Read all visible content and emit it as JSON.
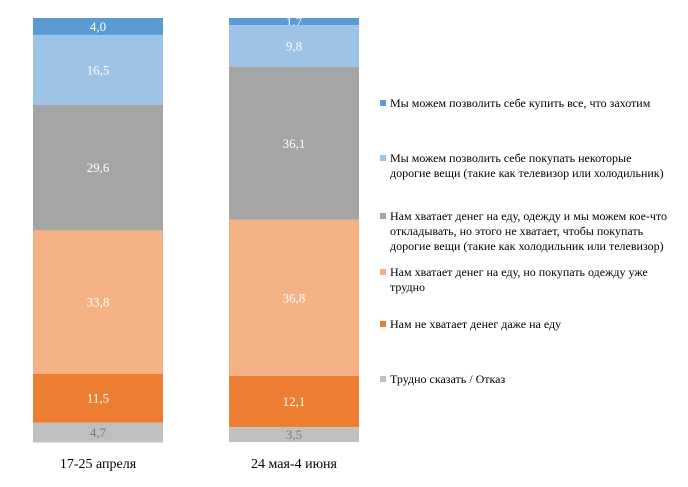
{
  "chart_data": {
    "type": "bar",
    "stacked": true,
    "percent": true,
    "categories": [
      "17-25 апреля",
      "24 мая-4 июня"
    ],
    "series": [
      {
        "name": "Мы можем позволить  себе купить все, что захотим",
        "color": "#5b9bd5",
        "values": [
          4.0,
          1.7
        ],
        "labels": [
          "4,0",
          "1,7"
        ]
      },
      {
        "name": "Мы можем позволить  себе покупать некоторые дорогие вещи (такие как телевизор  или холодильник)",
        "color": "#9dc3e6",
        "values": [
          16.5,
          9.8
        ],
        "labels": [
          "16,5",
          "9,8"
        ]
      },
      {
        "name": "Нам хватает  денег на еду, одежду и мы можем кое-что откладывать,  но этого не хватает,  чтобы покупать дорогие вещи (такие как холодильник или телевизор)",
        "color": "#a5a5a5",
        "values": [
          29.6,
          36.1
        ],
        "labels": [
          "29,6",
          "36,1"
        ]
      },
      {
        "name": "Нам хватает  денег  на еду, но покупать одежду уже трудно",
        "color": "#f4b183",
        "values": [
          33.8,
          36.8
        ],
        "labels": [
          "33,8",
          "36,8"
        ]
      },
      {
        "name": "Нам не хватает  денег даже на еду",
        "color": "#ed7d31",
        "values": [
          11.5,
          12.1
        ],
        "labels": [
          "11,5",
          "12,1"
        ]
      },
      {
        "name": "Трудно сказать  / Отказ",
        "color": "#bfbfbf",
        "values": [
          4.7,
          3.5
        ],
        "labels": [
          "4,7",
          "3,5"
        ]
      }
    ],
    "ylim": [
      0,
      100
    ],
    "grid": false,
    "legend_position": "right"
  }
}
